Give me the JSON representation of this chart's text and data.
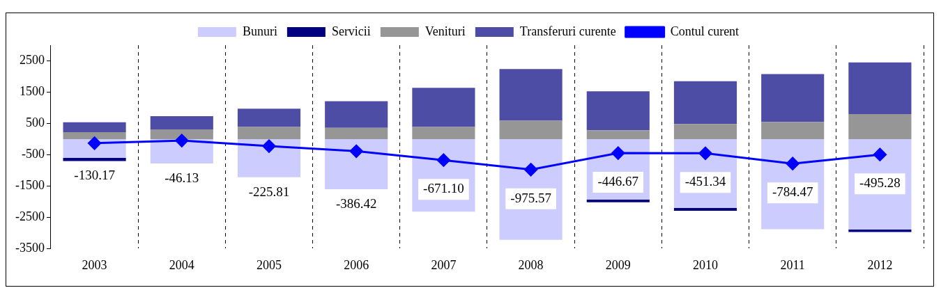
{
  "chart_data": {
    "type": "bar",
    "stacked": true,
    "categories": [
      "2003",
      "2004",
      "2005",
      "2006",
      "2007",
      "2008",
      "2009",
      "2010",
      "2011",
      "2012"
    ],
    "series": [
      {
        "name": "Bunuri",
        "color": "#ccccff",
        "values": [
          -600,
          -780,
          -1220,
          -1600,
          -2320,
          -3220,
          -1930,
          -2200,
          -2880,
          -2890
        ]
      },
      {
        "name": "Servicii",
        "color": "#000080",
        "values": [
          -100,
          0,
          0,
          0,
          0,
          0,
          -90,
          -90,
          0,
          -80
        ]
      },
      {
        "name": "Venituri",
        "color": "#969696",
        "values": [
          220,
          310,
          390,
          360,
          390,
          590,
          280,
          480,
          550,
          800
        ]
      },
      {
        "name": "Transferuri curente",
        "color": "#4d4da6",
        "values": [
          320,
          420,
          580,
          850,
          1250,
          1650,
          1250,
          1370,
          1530,
          1650
        ]
      },
      {
        "name": "Contul curent",
        "type": "line",
        "color": "#0000ff",
        "values": [
          -130.17,
          -46.13,
          -225.81,
          -386.42,
          -671.1,
          -975.57,
          -446.67,
          -451.34,
          -784.47,
          -495.28
        ],
        "value_labels": [
          "-130.17",
          "-46.13",
          "-225.81",
          "-386.42",
          "-671.10",
          "-975.57",
          "-446.67",
          "-451.34",
          "-784.47",
          "-495.28"
        ]
      }
    ],
    "ylim": [
      -3500,
      3000
    ],
    "yticks": [
      -3500,
      -2500,
      -1500,
      -500,
      500,
      1500,
      2500
    ],
    "grid": "x",
    "legend": "top",
    "marker": "diamond"
  }
}
